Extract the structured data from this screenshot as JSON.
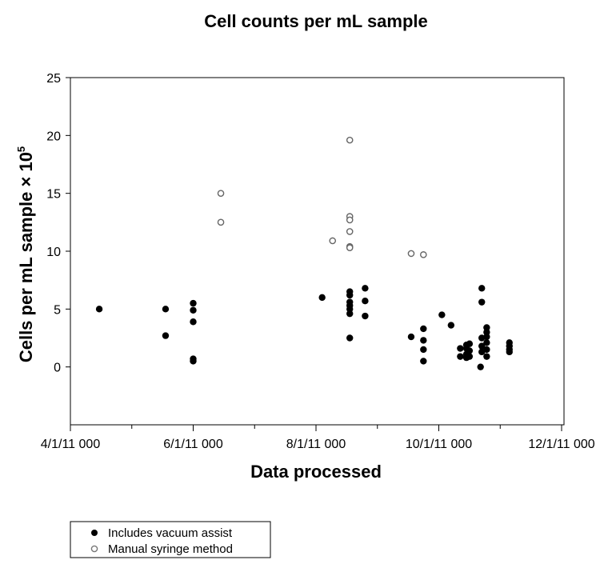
{
  "chart_data": {
    "type": "scatter",
    "title": "Cell counts per mL sample",
    "xlabel": "Data processed",
    "ylabel": "Cells per mL sample × 10",
    "ylabel_superscript": "5",
    "ylim": [
      -5,
      25
    ],
    "yticks": [
      0,
      5,
      10,
      15,
      20,
      25
    ],
    "xlim": [
      0,
      8
    ],
    "xticks": [
      0,
      2,
      4,
      6,
      8
    ],
    "xtick_labels": [
      "4/1/11 000",
      "6/1/11 000",
      "8/1/11 000",
      "10/1/11 000",
      "12/1/11 000"
    ],
    "x_units_note": "months after 4/1/11",
    "series": [
      {
        "name": "Includes vacuum assist",
        "marker": "filled-circle",
        "color": "#000000",
        "points": [
          [
            0.47,
            5.0
          ],
          [
            1.55,
            5.0
          ],
          [
            1.55,
            2.7
          ],
          [
            2.0,
            5.5
          ],
          [
            2.0,
            4.9
          ],
          [
            2.0,
            3.9
          ],
          [
            2.0,
            0.7
          ],
          [
            2.0,
            0.5
          ],
          [
            4.1,
            6.0
          ],
          [
            4.55,
            6.5
          ],
          [
            4.55,
            6.2
          ],
          [
            4.55,
            5.6
          ],
          [
            4.55,
            5.3
          ],
          [
            4.55,
            5.0
          ],
          [
            4.55,
            4.6
          ],
          [
            4.55,
            2.5
          ],
          [
            4.8,
            6.8
          ],
          [
            4.8,
            5.7
          ],
          [
            4.8,
            4.4
          ],
          [
            5.55,
            2.6
          ],
          [
            5.75,
            3.3
          ],
          [
            5.75,
            2.3
          ],
          [
            5.75,
            1.5
          ],
          [
            5.75,
            0.5
          ],
          [
            6.05,
            4.5
          ],
          [
            6.2,
            3.6
          ],
          [
            6.35,
            1.6
          ],
          [
            6.35,
            0.9
          ],
          [
            6.45,
            1.9
          ],
          [
            6.45,
            1.6
          ],
          [
            6.45,
            1.1
          ],
          [
            6.45,
            0.8
          ],
          [
            6.5,
            2.0
          ],
          [
            6.5,
            1.4
          ],
          [
            6.5,
            0.9
          ],
          [
            6.68,
            0.0
          ],
          [
            6.7,
            6.8
          ],
          [
            6.7,
            5.6
          ],
          [
            6.7,
            2.5
          ],
          [
            6.7,
            1.8
          ],
          [
            6.7,
            1.3
          ],
          [
            6.78,
            3.4
          ],
          [
            6.78,
            3.0
          ],
          [
            6.78,
            2.6
          ],
          [
            6.78,
            2.1
          ],
          [
            6.78,
            1.5
          ],
          [
            6.78,
            0.9
          ],
          [
            7.15,
            2.1
          ],
          [
            7.15,
            1.8
          ],
          [
            7.15,
            1.5
          ],
          [
            7.15,
            1.3
          ]
        ]
      },
      {
        "name": "Manual syringe method",
        "marker": "open-circle",
        "color": "#666666",
        "points": [
          [
            2.45,
            15.0
          ],
          [
            2.45,
            12.5
          ],
          [
            4.27,
            10.9
          ],
          [
            4.55,
            19.6
          ],
          [
            4.55,
            13.0
          ],
          [
            4.55,
            12.7
          ],
          [
            4.55,
            11.7
          ],
          [
            4.55,
            10.4
          ],
          [
            4.55,
            10.3
          ],
          [
            5.55,
            9.8
          ],
          [
            5.75,
            9.7
          ]
        ]
      }
    ]
  }
}
